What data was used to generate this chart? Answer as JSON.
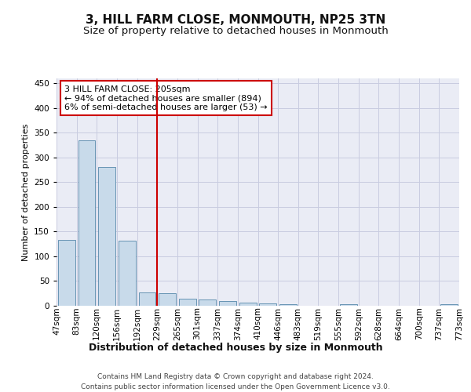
{
  "title": "3, HILL FARM CLOSE, MONMOUTH, NP25 3TN",
  "subtitle": "Size of property relative to detached houses in Monmouth",
  "xlabel": "Distribution of detached houses by size in Monmouth",
  "ylabel": "Number of detached properties",
  "bar_values": [
    133,
    335,
    280,
    132,
    27,
    25,
    15,
    13,
    10,
    7,
    5,
    3,
    0,
    0,
    3,
    0,
    0,
    0,
    0,
    3
  ],
  "categories": [
    "47sqm",
    "83sqm",
    "120sqm",
    "156sqm",
    "192sqm",
    "229sqm",
    "265sqm",
    "301sqm",
    "337sqm",
    "374sqm",
    "410sqm",
    "446sqm",
    "483sqm",
    "519sqm",
    "555sqm",
    "592sqm",
    "628sqm",
    "664sqm",
    "700sqm",
    "737sqm",
    "773sqm"
  ],
  "bar_color": "#c8daea",
  "bar_edge_color": "#5588aa",
  "grid_color": "#c8cce0",
  "background_color": "#eaecf5",
  "vline_color": "#cc0000",
  "annotation_text": "3 HILL FARM CLOSE: 205sqm\n← 94% of detached houses are smaller (894)\n6% of semi-detached houses are larger (53) →",
  "annotation_box_color": "#ffffff",
  "annotation_box_edge": "#cc0000",
  "ylim": [
    0,
    460
  ],
  "yticks": [
    0,
    50,
    100,
    150,
    200,
    250,
    300,
    350,
    400,
    450
  ],
  "footer": "Contains HM Land Registry data © Crown copyright and database right 2024.\nContains public sector information licensed under the Open Government Licence v3.0.",
  "title_fontsize": 11,
  "subtitle_fontsize": 9.5,
  "xlabel_fontsize": 9,
  "ylabel_fontsize": 8,
  "tick_fontsize": 7.5,
  "annotation_fontsize": 8,
  "footer_fontsize": 6.5
}
